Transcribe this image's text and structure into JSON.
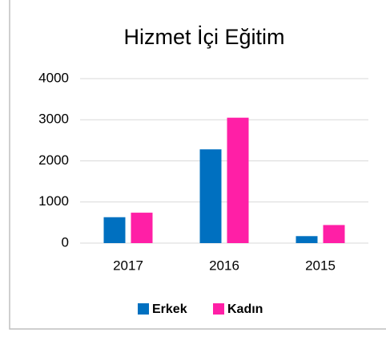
{
  "chart_data": {
    "type": "bar",
    "title": "Hizmet İçi Eğitim",
    "categories": [
      "2017",
      "2016",
      "2015"
    ],
    "series": [
      {
        "name": "Erkek",
        "color": "#0070c0",
        "values": [
          630,
          2280,
          170
        ]
      },
      {
        "name": "Kadın",
        "color": "#ff1fa6",
        "values": [
          740,
          3050,
          440
        ]
      }
    ],
    "ylim": [
      0,
      4000
    ],
    "yticks": [
      0,
      1000,
      2000,
      3000,
      4000
    ],
    "grid": true,
    "legend": "bottom"
  }
}
